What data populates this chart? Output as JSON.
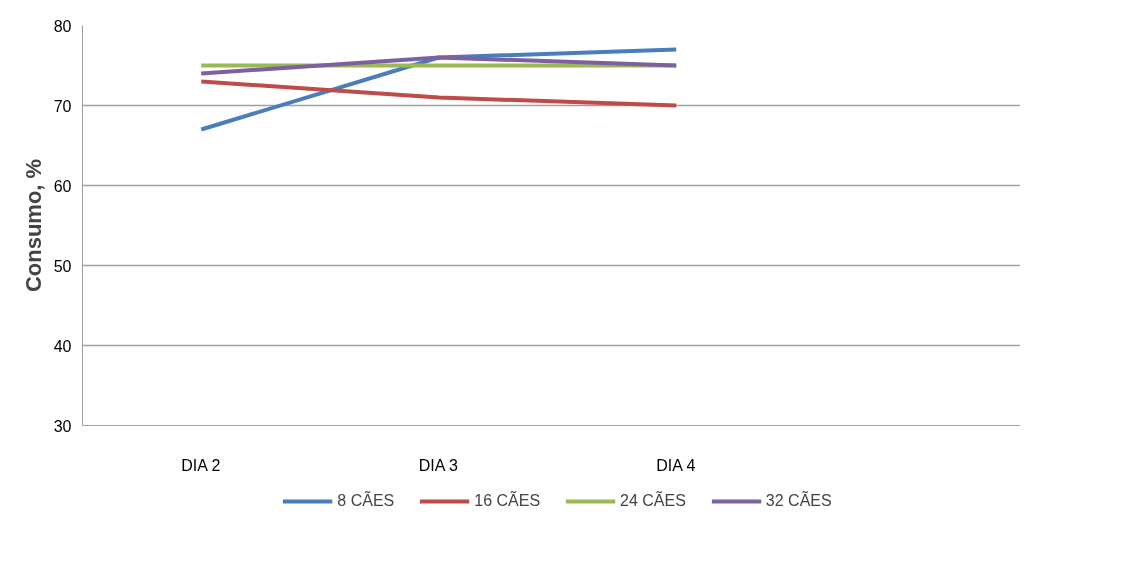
{
  "chart_data": {
    "type": "line",
    "ylabel": "Consumo, %",
    "categories": [
      "DIA 2",
      "DIA 3",
      "DIA 4",
      null
    ],
    "series": [
      {
        "name": "8 CÃES",
        "color": "#4a7ebb",
        "values": [
          67,
          76,
          77,
          null
        ]
      },
      {
        "name": "16 CÃES",
        "color": "#be4b48",
        "values": [
          73,
          71,
          70,
          null
        ]
      },
      {
        "name": "24 CÃES",
        "color": "#98b954",
        "values": [
          75,
          75,
          75,
          null
        ]
      },
      {
        "name": "32 CÃES",
        "color": "#7d60a0",
        "values": [
          74,
          76,
          75,
          null
        ]
      }
    ],
    "ylim": [
      30,
      80
    ],
    "yticks": [
      30,
      40,
      50,
      60,
      70,
      80
    ],
    "grid": "y",
    "legend": "bottom",
    "marker": "none",
    "line_style": "solid"
  }
}
